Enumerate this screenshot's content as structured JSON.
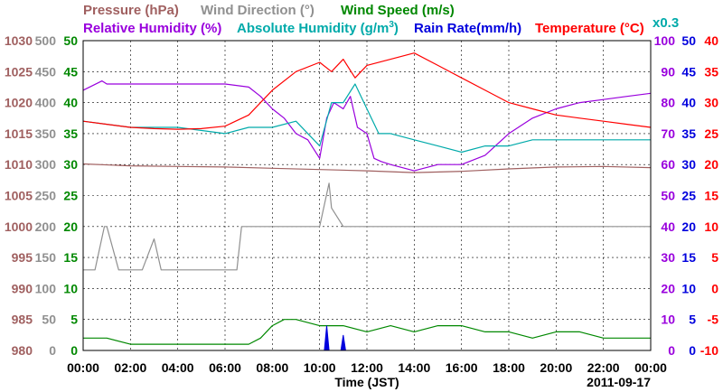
{
  "legend": {
    "pressure": "Pressure (hPa)",
    "wind_direction": "Wind Direction (°)",
    "wind_speed": "Wind Speed (m/s)",
    "relative_humidity": "Relative Humidity (%)",
    "absolute_humidity_pre": "Absolute Humidity (g/m",
    "absolute_humidity_sup": "3",
    "absolute_humidity_post": ")",
    "rain_rate": "Rain Rate(mm/h)",
    "temperature_pre": "Temperature (",
    "temperature_deg": "°",
    "temperature_post": "C)",
    "multiplier": "x0.3"
  },
  "colors": {
    "pressure": "#a06060",
    "wind_direction": "#909090",
    "wind_speed": "#008800",
    "relative_humidity": "#9900dd",
    "absolute_humidity": "#00aaaa",
    "rain_rate": "#0000dd",
    "temperature": "#ff0000",
    "grid": "#000000"
  },
  "chart_data": {
    "type": "line",
    "xlabel": "Time (JST)",
    "date": "2011-09-17",
    "x_ticks": [
      "00:00",
      "02:00",
      "04:00",
      "06:00",
      "08:00",
      "10:00",
      "12:00",
      "14:00",
      "16:00",
      "18:00",
      "20:00",
      "22:00",
      "00:00"
    ],
    "xlim": [
      0,
      24
    ],
    "grid": true,
    "left_axes": [
      {
        "name": "Pressure (hPa)",
        "ticks": [
          "1030",
          "1025",
          "1020",
          "1015",
          "1010",
          "1005",
          "1000",
          "995",
          "990",
          "985",
          "980"
        ],
        "ylim": [
          980,
          1030
        ]
      },
      {
        "name": "Wind Direction (°)",
        "ticks": [
          "500",
          "450",
          "400",
          "350",
          "300",
          "250",
          "200",
          "150",
          "100",
          "50",
          "0"
        ],
        "ylim": [
          0,
          500
        ]
      },
      {
        "name": "Wind Speed (m/s)",
        "ticks": [
          "50",
          "45",
          "40",
          "35",
          "30",
          "25",
          "20",
          "15",
          "10",
          "5",
          "0"
        ],
        "ylim": [
          0,
          50
        ]
      }
    ],
    "right_axes": [
      {
        "name": "Relative Humidity (%)",
        "ticks": [
          "100",
          "90",
          "80",
          "70",
          "60",
          "50",
          "40",
          "30",
          "20",
          "10",
          "0"
        ],
        "ylim": [
          0,
          100
        ]
      },
      {
        "name": "Rain Rate(mm/h)",
        "ticks": [
          "50",
          "45",
          "40",
          "35",
          "30",
          "25",
          "20",
          "15",
          "10",
          "5",
          "0"
        ],
        "ylim": [
          0,
          50
        ]
      },
      {
        "name": "Temperature (°C)",
        "ticks": [
          "40",
          "35",
          "30",
          "25",
          "20",
          "15",
          "10",
          "5",
          "0",
          "-5",
          "-10"
        ],
        "ylim": [
          -10,
          40
        ]
      }
    ],
    "series": [
      {
        "name": "Pressure (hPa)",
        "axis": "Pressure (hPa)",
        "x": [
          0,
          2,
          4,
          6,
          8,
          10,
          12,
          14,
          16,
          18,
          20,
          22,
          24
        ],
        "values": [
          1010.1,
          1009.8,
          1009.7,
          1009.6,
          1009.4,
          1009.2,
          1009.0,
          1008.7,
          1008.9,
          1009.3,
          1009.6,
          1009.7,
          1009.5
        ]
      },
      {
        "name": "Wind Direction (°)",
        "axis": "Wind Direction (°)",
        "x": [
          0,
          0.5,
          0.9,
          1.0,
          1.5,
          2.5,
          3.0,
          3.3,
          3.5,
          4.0,
          4.5,
          5.0,
          5.5,
          6.0,
          6.5,
          6.7,
          7.0,
          7.5,
          8.0,
          8.5,
          9.0,
          9.5,
          10.0,
          10.4,
          10.5,
          11.0,
          11.5,
          12.0,
          12.5,
          13.0,
          14.0,
          15.0,
          16.0,
          17.0,
          18.0,
          19.0,
          20.0,
          21.0,
          22.0,
          23.0,
          24.0
        ],
        "values": [
          130,
          130,
          200,
          200,
          130,
          130,
          180,
          130,
          130,
          130,
          130,
          130,
          130,
          130,
          130,
          200,
          200,
          200,
          200,
          200,
          200,
          200,
          200,
          270,
          230,
          200,
          200,
          200,
          200,
          200,
          200,
          200,
          200,
          200,
          200,
          200,
          200,
          200,
          200,
          200,
          200
        ]
      },
      {
        "name": "Wind Speed (m/s)",
        "axis": "Wind Speed (m/s)",
        "x": [
          0,
          1,
          2,
          3,
          4,
          5,
          6,
          7,
          7.5,
          8,
          8.5,
          9,
          10,
          11,
          12,
          13,
          14,
          15,
          16,
          17,
          18,
          19,
          20,
          21,
          22,
          23,
          24
        ],
        "values": [
          2,
          2,
          1,
          1,
          1,
          1,
          1,
          1,
          2,
          4,
          5,
          5,
          4,
          4,
          3,
          4,
          3,
          4,
          4,
          3,
          3,
          2,
          3,
          3,
          2,
          2,
          2
        ]
      },
      {
        "name": "Relative Humidity (%)",
        "axis": "Relative Humidity (%)",
        "x": [
          0,
          0.8,
          1,
          2,
          4,
          6,
          7,
          7.5,
          8,
          8.5,
          9,
          9.5,
          10,
          10.3,
          10.6,
          11,
          11.3,
          11.6,
          12,
          12.3,
          12.6,
          13,
          14,
          15,
          16,
          17,
          18,
          19,
          20,
          21,
          22,
          23,
          24
        ],
        "values": [
          84,
          87,
          86,
          86,
          86,
          86,
          85,
          82,
          78,
          75,
          70,
          68,
          62,
          75,
          80,
          78,
          82,
          72,
          70,
          62,
          61,
          60,
          58,
          60,
          60,
          63,
          70,
          75,
          78,
          80,
          81,
          82,
          83
        ]
      },
      {
        "name": "Absolute Humidity (g/m3)",
        "axis": "Wind Speed (m/s)",
        "x": [
          0,
          2,
          4,
          6,
          7,
          8,
          9,
          10,
          10.5,
          11,
          11.5,
          12,
          12.5,
          13,
          14,
          15,
          16,
          17,
          18,
          19,
          20,
          21,
          22,
          23,
          24
        ],
        "values": [
          37,
          36,
          36,
          35,
          36,
          36,
          37,
          33,
          40,
          40,
          43,
          39,
          35,
          35,
          34,
          33,
          32,
          33,
          33,
          34,
          34,
          34,
          34,
          34,
          34
        ]
      },
      {
        "name": "Rain Rate(mm/h)",
        "axis": "Rain Rate(mm/h)",
        "x": [
          0,
          10.2,
          10.3,
          10.4,
          10.5,
          10.9,
          11.0,
          11.1,
          11.2,
          24
        ],
        "values": [
          0,
          0,
          4,
          0,
          0,
          0,
          2.5,
          0,
          0,
          0
        ]
      },
      {
        "name": "Temperature (°C)",
        "axis": "Temperature (°C)",
        "x": [
          0,
          1,
          2,
          3,
          4,
          5,
          6,
          7,
          8,
          9,
          10,
          10.5,
          11,
          11.5,
          12,
          13,
          14,
          15,
          16,
          17,
          18,
          19,
          20,
          21,
          22,
          23,
          24
        ],
        "values": [
          27,
          26.5,
          26,
          25.8,
          25.7,
          25.8,
          26.2,
          28,
          32,
          35,
          36.5,
          35,
          37,
          34,
          36,
          37,
          38,
          36,
          34,
          32,
          30,
          29,
          28,
          27.5,
          27,
          26.5,
          26
        ]
      }
    ]
  }
}
